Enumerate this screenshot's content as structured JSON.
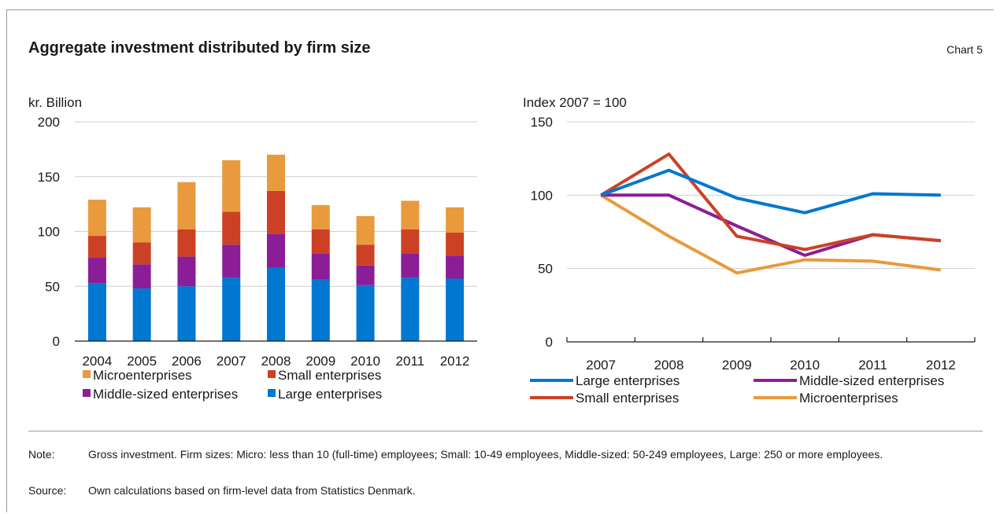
{
  "header": {
    "title": "Aggregate investment distributed by firm size",
    "chart_label": "Chart 5"
  },
  "footer": {
    "note_label": "Note:",
    "note_text": "Gross investment. Firm sizes: Micro: less than 10 (full-time) employees; Small: 10-49 employees, Middle-sized: 50-249 employees, Large: 250 or more employees.",
    "source_label": "Source:",
    "source_text": "Own calculations based on firm-level data from Statistics Denmark."
  },
  "chart_data": [
    {
      "type": "bar",
      "stacked": true,
      "title": "",
      "ylabel": "kr. Billion",
      "xlabel": "",
      "ylim": [
        0,
        200
      ],
      "yticks": [
        0,
        50,
        100,
        150,
        200
      ],
      "grid": true,
      "legend_position": "bottom",
      "categories": [
        "2004",
        "2005",
        "2006",
        "2007",
        "2008",
        "2009",
        "2010",
        "2011",
        "2012"
      ],
      "series": [
        {
          "name": "Large enterprises",
          "color": "#0077d0",
          "values": [
            53,
            48,
            50,
            58,
            67,
            56,
            51,
            58,
            57
          ]
        },
        {
          "name": "Middle-sized enterprises",
          "color": "#8b1e97",
          "values": [
            23,
            22,
            27,
            30,
            31,
            24,
            18,
            22,
            21
          ]
        },
        {
          "name": "Small enterprises",
          "color": "#cc4125",
          "values": [
            20,
            20,
            25,
            30,
            39,
            22,
            19,
            22,
            21
          ]
        },
        {
          "name": "Microenterprises",
          "color": "#e89a3c",
          "values": [
            33,
            32,
            43,
            47,
            33,
            22,
            26,
            26,
            23
          ]
        }
      ],
      "legend_order": [
        "Microenterprises",
        "Small enterprises",
        "Middle-sized enterprises",
        "Large enterprises"
      ]
    },
    {
      "type": "line",
      "title": "",
      "ylabel": "Index 2007 = 100",
      "xlabel": "",
      "ylim": [
        0,
        150
      ],
      "yticks": [
        0,
        50,
        100,
        150
      ],
      "grid": true,
      "legend_position": "bottom",
      "x": [
        "2007",
        "2008",
        "2009",
        "2010",
        "2011",
        "2012"
      ],
      "series": [
        {
          "name": "Large enterprises",
          "color": "#0077d0",
          "values": [
            100,
            117,
            98,
            88,
            101,
            100
          ]
        },
        {
          "name": "Middle-sized enterprises",
          "color": "#8b1e97",
          "values": [
            100,
            100,
            79,
            59,
            73,
            69
          ]
        },
        {
          "name": "Small enterprises",
          "color": "#cc4125",
          "values": [
            100,
            128,
            72,
            63,
            73,
            69
          ]
        },
        {
          "name": "Microenterprises",
          "color": "#e89a3c",
          "values": [
            100,
            72,
            47,
            56,
            55,
            49
          ]
        }
      ],
      "draw_order": [
        "Microenterprises",
        "Middle-sized enterprises",
        "Small enterprises",
        "Large enterprises"
      ]
    }
  ]
}
